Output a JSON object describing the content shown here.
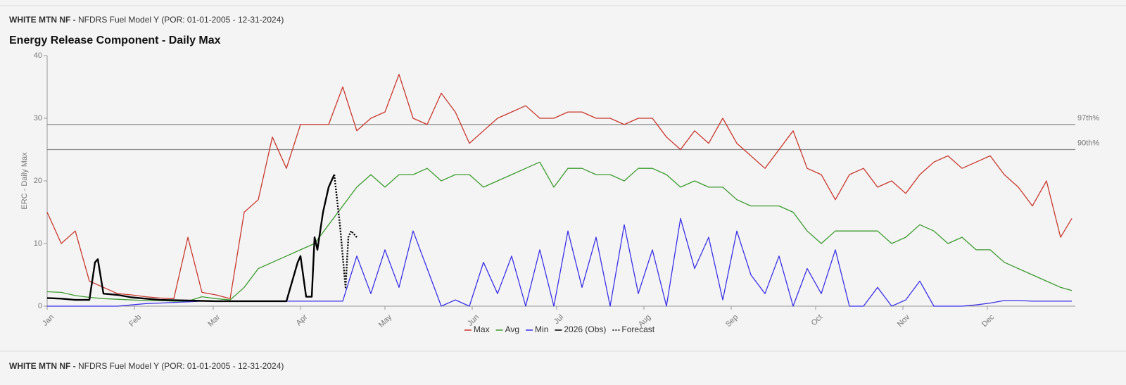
{
  "header": {
    "station": "WHITE MTN NF -",
    "subtitle": "NFDRS Fuel Model Y (POR: 01-01-2005 - 12-31-2024)"
  },
  "next_panel": {
    "station": "WHITE MTN NF -",
    "subtitle": "NFDRS Fuel Model Y (POR: 01-01-2005 - 12-31-2024)"
  },
  "chart_data": {
    "type": "line",
    "title": "Energy Release Component - Daily Max",
    "y_label": "ERC - Daily Max",
    "xlim": [
      1,
      365
    ],
    "ylim": [
      0,
      40
    ],
    "yticks": [
      0,
      10,
      20,
      30,
      40
    ],
    "xticks": [
      {
        "value": 1,
        "label": "Jan"
      },
      {
        "value": 32,
        "label": "Feb"
      },
      {
        "value": 60,
        "label": "Mar"
      },
      {
        "value": 91,
        "label": "Apr"
      },
      {
        "value": 121,
        "label": "May"
      },
      {
        "value": 152,
        "label": "Jun"
      },
      {
        "value": 182,
        "label": "Jul"
      },
      {
        "value": 213,
        "label": "Aug"
      },
      {
        "value": 244,
        "label": "Sep"
      },
      {
        "value": 274,
        "label": "Oct"
      },
      {
        "value": 305,
        "label": "Nov"
      },
      {
        "value": 335,
        "label": "Dec"
      }
    ],
    "reference_lines": [
      {
        "label": "97th%",
        "value": 29
      },
      {
        "label": "90th%",
        "value": 25
      }
    ],
    "legend": "bottom",
    "x": [
      1,
      6,
      11,
      16,
      21,
      26,
      31,
      36,
      41,
      46,
      51,
      56,
      61,
      66,
      71,
      76,
      81,
      86,
      91,
      96,
      101,
      106,
      111,
      116,
      121,
      126,
      131,
      136,
      141,
      146,
      151,
      156,
      161,
      166,
      171,
      176,
      181,
      186,
      191,
      196,
      201,
      206,
      211,
      216,
      221,
      226,
      231,
      236,
      241,
      246,
      251,
      256,
      261,
      266,
      271,
      276,
      281,
      286,
      291,
      296,
      301,
      306,
      311,
      316,
      321,
      326,
      331,
      336,
      341,
      346,
      351,
      356,
      361,
      365
    ],
    "series": [
      {
        "name": "Max",
        "color": "#c8372d",
        "values": [
          15,
          10,
          12,
          4,
          3,
          2,
          1.8,
          1.5,
          1.3,
          1.2,
          11,
          2.2,
          1.8,
          1.2,
          15,
          17,
          27,
          22,
          29,
          29,
          29,
          35,
          28,
          30,
          31,
          37,
          30,
          29,
          34,
          31,
          26,
          28,
          30,
          31,
          32,
          30,
          30,
          31,
          31,
          30,
          30,
          29,
          30,
          30,
          27,
          25,
          28,
          26,
          30,
          26,
          24,
          22,
          25,
          28,
          22,
          21,
          17,
          21,
          22,
          19,
          20,
          18,
          21,
          23,
          24,
          22,
          23,
          24,
          21,
          19,
          16,
          20,
          11,
          14
        ]
      },
      {
        "name": "Avg",
        "color": "#3c9a2e",
        "values": [
          2.3,
          2.2,
          1.7,
          1.4,
          1.2,
          1.1,
          1,
          0.9,
          0.9,
          0.8,
          0.8,
          1.5,
          1.2,
          1,
          3,
          6,
          7,
          8,
          9,
          10,
          13,
          16,
          19,
          21,
          19,
          21,
          21,
          22,
          20,
          21,
          21,
          19,
          20,
          21,
          22,
          23,
          19,
          22,
          22,
          21,
          21,
          20,
          22,
          22,
          21,
          19,
          20,
          19,
          19,
          17,
          16,
          16,
          16,
          15,
          12,
          10,
          12,
          12,
          12,
          12,
          10,
          11,
          13,
          12,
          10,
          11,
          9,
          9,
          7,
          6,
          5,
          4,
          3,
          2.5
        ]
      },
      {
        "name": "Min",
        "color": "#3b30e6",
        "values": [
          0,
          0,
          0,
          0,
          0,
          0,
          0.2,
          0.4,
          0.5,
          0.6,
          0.7,
          0.8,
          0.8,
          0.8,
          0.8,
          0.8,
          0.8,
          0.8,
          0.8,
          0.8,
          0.8,
          0.8,
          8,
          2,
          9,
          3,
          12,
          6,
          0,
          1,
          0,
          7,
          2,
          8,
          0,
          9,
          0,
          12,
          3,
          11,
          0,
          13,
          2,
          9,
          0,
          14,
          6,
          11,
          1,
          12,
          5,
          2,
          8,
          0,
          6,
          2,
          9,
          0,
          0,
          3,
          0,
          1,
          4,
          0,
          0,
          0,
          0.2,
          0.5,
          0.9,
          0.9,
          0.8,
          0.8,
          0.8,
          0.8
        ]
      },
      {
        "name": "2026 (Obs)",
        "color": "#000000",
        "x": [
          1,
          6,
          11,
          16,
          18,
          19,
          21,
          26,
          31,
          36,
          41,
          51,
          61,
          71,
          81,
          86,
          90,
          91,
          93,
          95,
          96,
          97,
          99,
          101,
          102,
          103
        ],
        "values": [
          1.3,
          1.2,
          1,
          1,
          7,
          7.5,
          2,
          1.8,
          1.4,
          1.2,
          1,
          0.9,
          0.8,
          0.8,
          0.8,
          0.8,
          7,
          8,
          1.5,
          1.5,
          11,
          9,
          15,
          19,
          20,
          21
        ]
      },
      {
        "name": "Forecast",
        "color": "#000000",
        "dashed": true,
        "x": [
          103,
          104,
          105,
          106,
          107,
          108,
          109,
          111
        ],
        "values": [
          21,
          17,
          13,
          8,
          3,
          11,
          12,
          11
        ]
      }
    ]
  }
}
